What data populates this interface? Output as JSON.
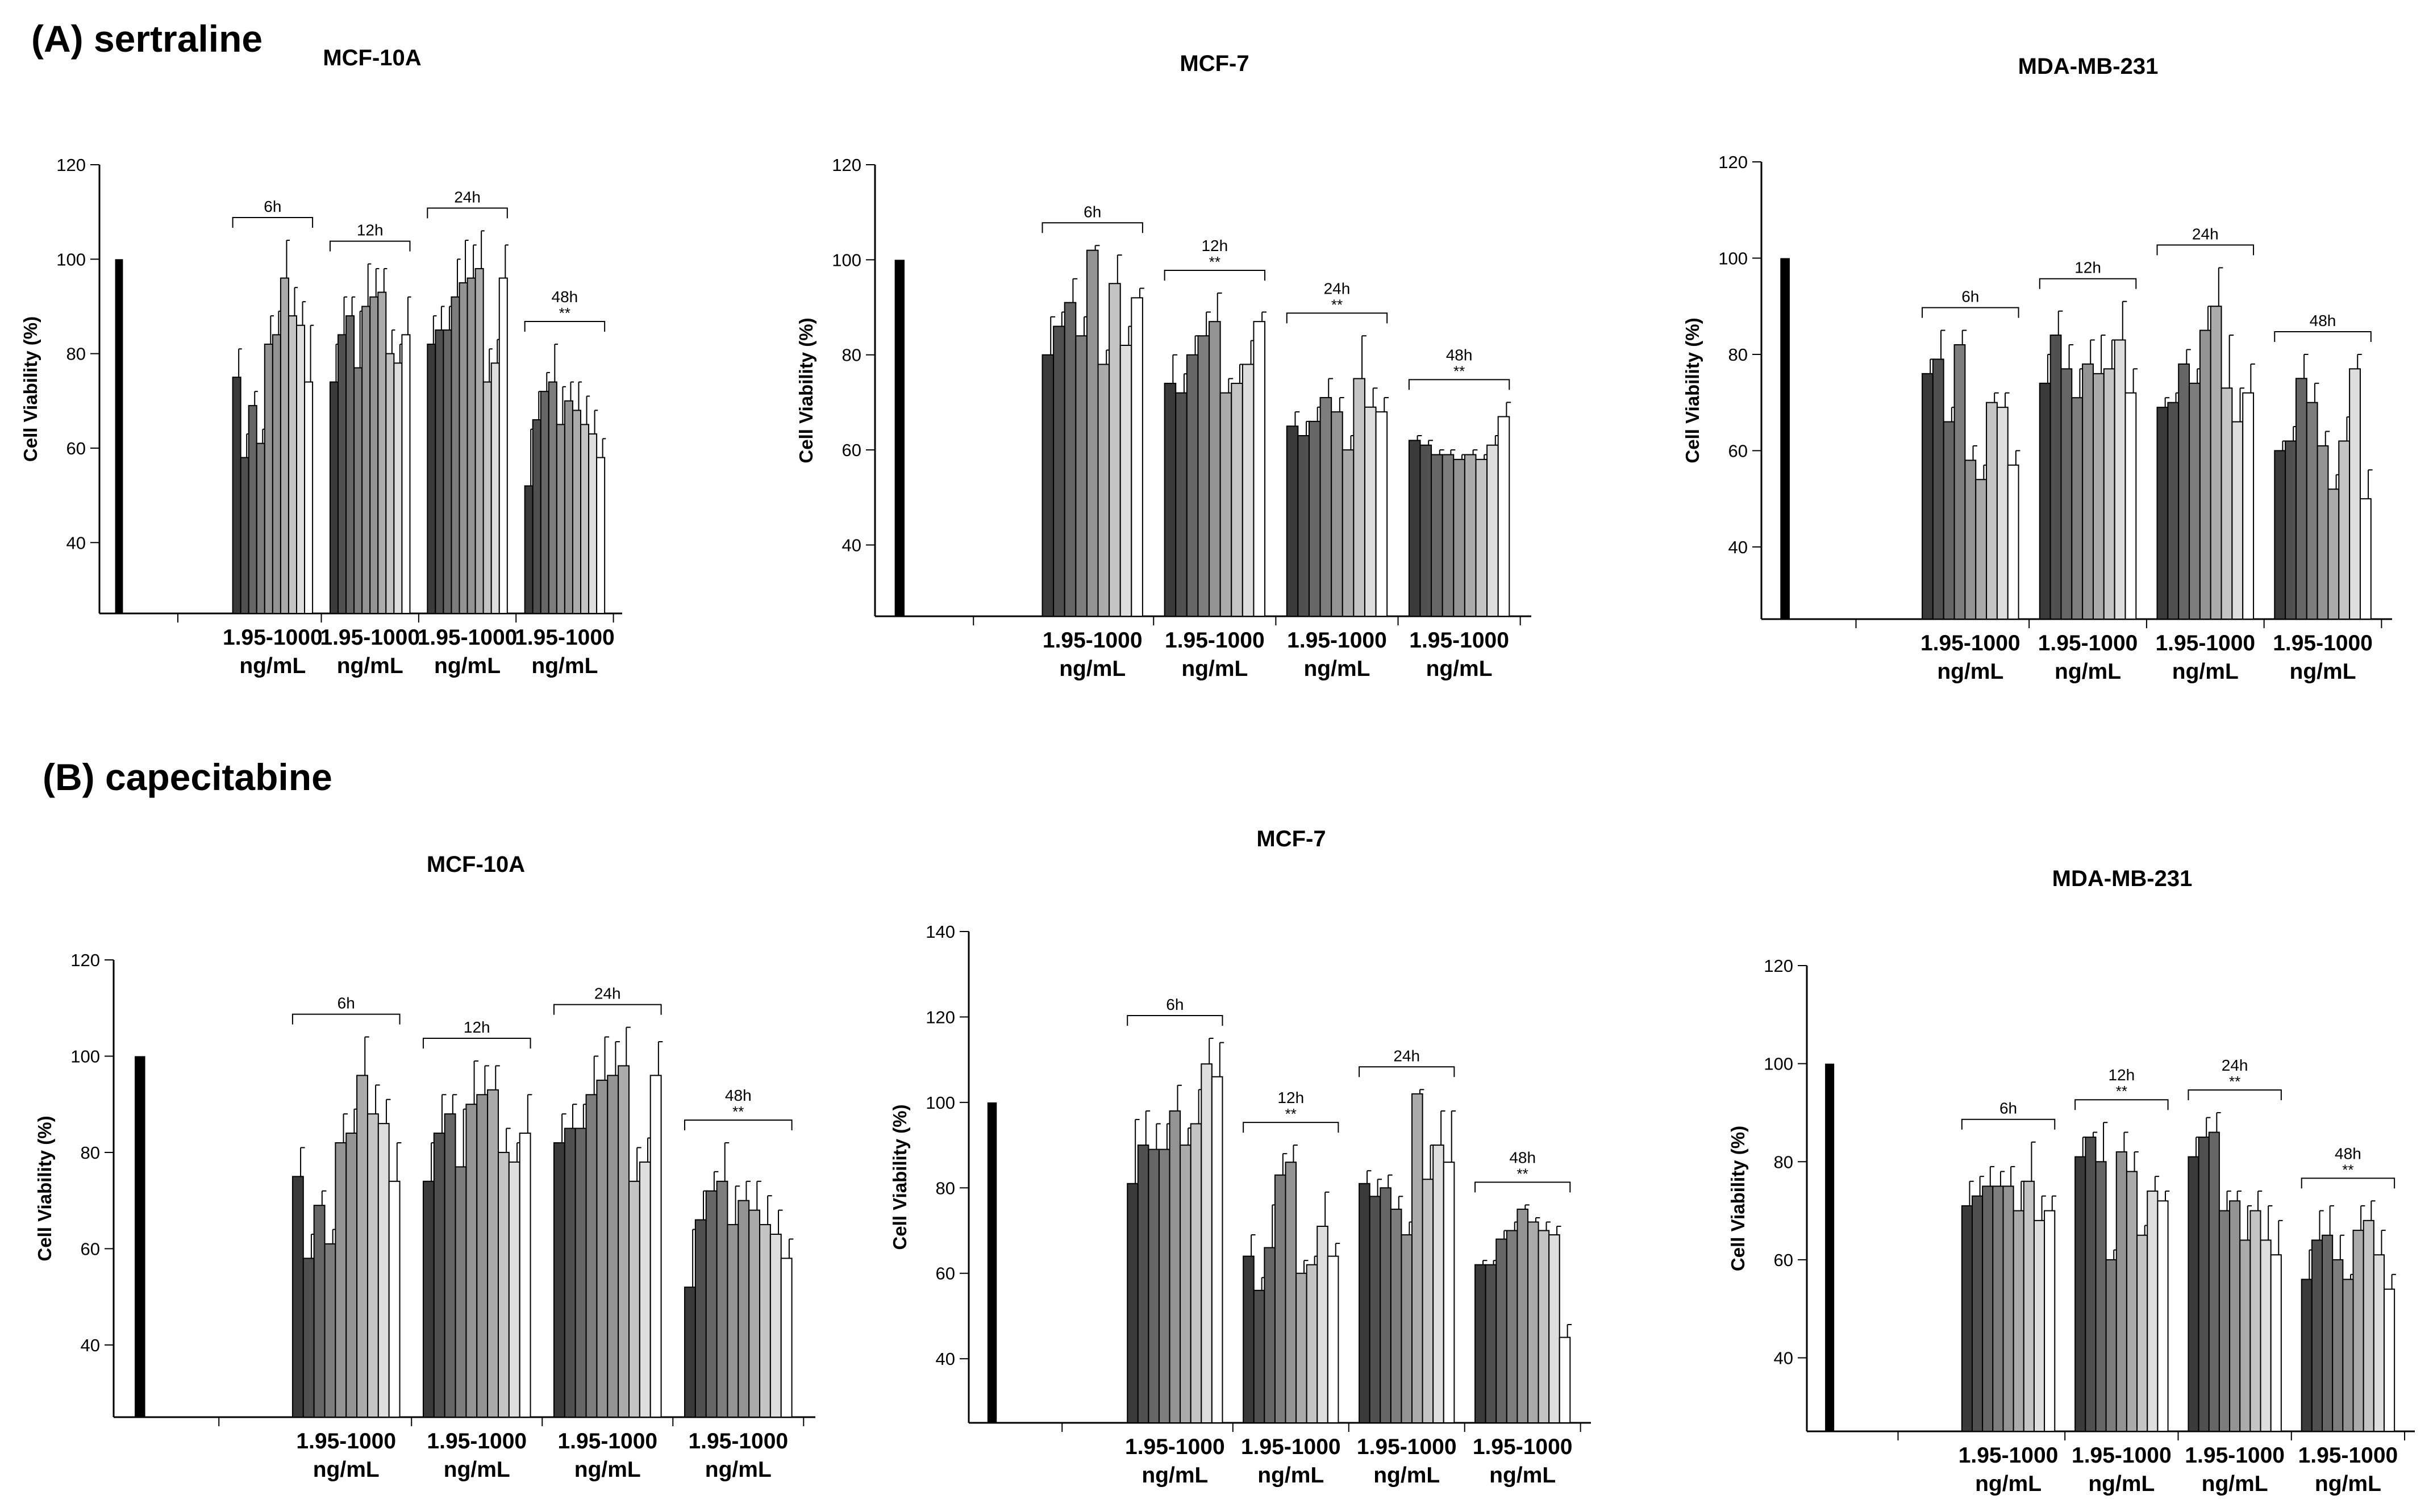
{
  "sections": {
    "a": {
      "title": "(A) sertraline"
    },
    "b": {
      "title": "(B) capecitabine"
    }
  },
  "colors": {
    "control": "#000000",
    "bar_shades": [
      "#3a3a3a",
      "#505050",
      "#666666",
      "#7d7d7d",
      "#939393",
      "#ababab",
      "#c4c4c4",
      "#dedede",
      "#ffffff"
    ],
    "axis": "#000000"
  },
  "chart_data": [
    {
      "id": "a-mcf10a",
      "type": "bar",
      "section": "a",
      "title": "MCF-10A",
      "ylabel": "Cell Viability (%)",
      "ylim": [
        25,
        120
      ],
      "yticks": [
        40,
        60,
        80,
        100,
        120
      ],
      "control": 100,
      "group_label": [
        "1.95-1000",
        "ng/mL"
      ],
      "groups": [
        {
          "time": "6h",
          "sig": "",
          "values": [
            75,
            58,
            69,
            61,
            82,
            84,
            96,
            88,
            86,
            74
          ],
          "err": [
            6,
            5,
            3,
            3,
            6,
            5,
            8,
            6,
            5,
            12
          ]
        },
        {
          "time": "12h",
          "sig": "",
          "values": [
            74,
            84,
            88,
            77,
            90,
            92,
            93,
            80,
            78,
            84
          ],
          "err": [
            8,
            8,
            4,
            12,
            9,
            6,
            5,
            5,
            4,
            8
          ]
        },
        {
          "time": "24h",
          "sig": "",
          "values": [
            82,
            85,
            85,
            92,
            95,
            96,
            98,
            74,
            78,
            96
          ],
          "err": [
            6,
            5,
            5,
            8,
            9,
            7,
            8,
            7,
            5,
            7
          ]
        },
        {
          "time": "48h",
          "sig": "**",
          "values": [
            52,
            66,
            72,
            74,
            65,
            70,
            68,
            65,
            63,
            58
          ],
          "err": [
            12,
            6,
            4,
            8,
            8,
            4,
            6,
            6,
            5,
            4
          ]
        }
      ]
    },
    {
      "id": "a-mcf7",
      "type": "bar",
      "section": "a",
      "title": "MCF-7",
      "ylabel": "Cell Viability (%)",
      "ylim": [
        25,
        120
      ],
      "yticks": [
        40,
        60,
        80,
        100,
        120
      ],
      "control": 100,
      "group_label": [
        "1.95-1000",
        "ng/mL"
      ],
      "groups": [
        {
          "time": "6h",
          "sig": "",
          "values": [
            80,
            86,
            91,
            84,
            102,
            78,
            95,
            82,
            92
          ],
          "err": [
            8,
            3,
            5,
            4,
            1,
            3,
            6,
            4,
            2
          ]
        },
        {
          "time": "12h",
          "sig": "**",
          "values": [
            74,
            72,
            80,
            84,
            87,
            72,
            74,
            78,
            87
          ],
          "err": [
            6,
            4,
            4,
            5,
            6,
            3,
            4,
            5,
            2
          ]
        },
        {
          "time": "24h",
          "sig": "**",
          "values": [
            65,
            63,
            66,
            71,
            68,
            60,
            75,
            69,
            68
          ],
          "err": [
            3,
            3,
            3,
            4,
            3,
            3,
            9,
            4,
            3
          ]
        },
        {
          "time": "48h",
          "sig": "**",
          "values": [
            62,
            61,
            59,
            59,
            58,
            59,
            58,
            61,
            67
          ],
          "err": [
            1,
            1,
            1,
            1,
            1,
            1,
            1,
            2,
            3
          ]
        }
      ]
    },
    {
      "id": "a-mda",
      "type": "bar",
      "section": "a",
      "title": "MDA-MB-231",
      "ylabel": "Cell Viability (%)",
      "ylim": [
        25,
        120
      ],
      "yticks": [
        40,
        60,
        80,
        100,
        120
      ],
      "control": 100,
      "group_label": [
        "1.95-1000",
        "ng/mL"
      ],
      "groups": [
        {
          "time": "6h",
          "sig": "",
          "values": [
            76,
            79,
            66,
            82,
            58,
            54,
            70,
            69,
            57
          ],
          "err": [
            3,
            6,
            3,
            3,
            3,
            3,
            2,
            3,
            3
          ]
        },
        {
          "time": "12h",
          "sig": "",
          "values": [
            74,
            84,
            77,
            71,
            78,
            76,
            77,
            83,
            72
          ],
          "err": [
            6,
            5,
            5,
            6,
            5,
            8,
            6,
            8,
            5
          ]
        },
        {
          "time": "24h",
          "sig": "",
          "values": [
            69,
            70,
            78,
            74,
            85,
            90,
            73,
            66,
            72
          ],
          "err": [
            2,
            2,
            3,
            3,
            5,
            8,
            11,
            7,
            6
          ]
        },
        {
          "time": "48h",
          "sig": "",
          "values": [
            60,
            62,
            75,
            70,
            61,
            52,
            62,
            77,
            50
          ],
          "err": [
            2,
            3,
            5,
            4,
            3,
            3,
            5,
            3,
            6
          ]
        }
      ]
    },
    {
      "id": "b-mcf10a",
      "type": "bar",
      "section": "b",
      "title": "MCF-10A",
      "ylabel": "Cell Viability (%)",
      "ylim": [
        25,
        120
      ],
      "yticks": [
        40,
        60,
        80,
        100,
        120
      ],
      "control": 100,
      "group_label": [
        "1.95-1000",
        "ng/mL"
      ],
      "groups": [
        {
          "time": "6h",
          "sig": "",
          "values": [
            75,
            58,
            69,
            61,
            82,
            84,
            96,
            88,
            86,
            74
          ],
          "err": [
            6,
            5,
            3,
            3,
            6,
            5,
            8,
            6,
            5,
            8
          ]
        },
        {
          "time": "12h",
          "sig": "",
          "values": [
            74,
            84,
            88,
            77,
            90,
            92,
            93,
            80,
            78,
            84
          ],
          "err": [
            8,
            8,
            4,
            12,
            9,
            6,
            5,
            5,
            4,
            8
          ]
        },
        {
          "time": "24h",
          "sig": "",
          "values": [
            82,
            85,
            85,
            92,
            95,
            96,
            98,
            74,
            78,
            96
          ],
          "err": [
            6,
            5,
            5,
            8,
            9,
            7,
            8,
            7,
            5,
            7
          ]
        },
        {
          "time": "48h",
          "sig": "**",
          "values": [
            52,
            66,
            72,
            74,
            65,
            70,
            68,
            65,
            63,
            58
          ],
          "err": [
            12,
            6,
            4,
            8,
            8,
            4,
            6,
            6,
            5,
            4
          ]
        }
      ]
    },
    {
      "id": "b-mcf7",
      "type": "bar",
      "section": "b",
      "title": "MCF-7",
      "ylabel": "Cell Viability (%)",
      "ylim": [
        25,
        140
      ],
      "yticks": [
        40,
        60,
        80,
        100,
        120,
        140
      ],
      "control": 100,
      "group_label": [
        "1.95-1000",
        "ng/mL"
      ],
      "groups": [
        {
          "time": "6h",
          "sig": "",
          "values": [
            81,
            90,
            89,
            89,
            98,
            90,
            95,
            109,
            106
          ],
          "err": [
            15,
            8,
            6,
            6,
            6,
            4,
            8,
            6,
            8
          ]
        },
        {
          "time": "12h",
          "sig": "**",
          "values": [
            64,
            56,
            66,
            83,
            86,
            60,
            62,
            71,
            64
          ],
          "err": [
            5,
            3,
            10,
            5,
            4,
            3,
            2,
            8,
            3
          ]
        },
        {
          "time": "24h",
          "sig": "",
          "values": [
            81,
            78,
            80,
            75,
            69,
            102,
            82,
            90,
            86
          ],
          "err": [
            3,
            4,
            3,
            3,
            3,
            1,
            8,
            8,
            12
          ]
        },
        {
          "time": "48h",
          "sig": "**",
          "values": [
            62,
            62,
            68,
            70,
            75,
            72,
            70,
            69,
            45
          ],
          "err": [
            1,
            1,
            2,
            2,
            1,
            1,
            2,
            2,
            3
          ]
        }
      ]
    },
    {
      "id": "b-mda",
      "type": "bar",
      "section": "b",
      "title": "MDA-MB-231",
      "ylabel": "Cell Viability (%)",
      "ylim": [
        25,
        120
      ],
      "yticks": [
        40,
        60,
        80,
        100,
        120
      ],
      "control": 100,
      "group_label": [
        "1.95-1000",
        "ng/mL"
      ],
      "groups": [
        {
          "time": "6h",
          "sig": "",
          "values": [
            71,
            73,
            75,
            75,
            75,
            70,
            76,
            68,
            70
          ],
          "err": [
            5,
            4,
            4,
            3,
            4,
            6,
            8,
            5,
            3
          ]
        },
        {
          "time": "12h",
          "sig": "**",
          "values": [
            81,
            85,
            80,
            60,
            82,
            78,
            65,
            74,
            72
          ],
          "err": [
            4,
            1,
            8,
            2,
            4,
            4,
            2,
            3,
            2
          ]
        },
        {
          "time": "24h",
          "sig": "**",
          "values": [
            81,
            85,
            86,
            70,
            72,
            64,
            70,
            64,
            61
          ],
          "err": [
            4,
            4,
            4,
            4,
            2,
            7,
            4,
            7,
            7
          ]
        },
        {
          "time": "48h",
          "sig": "**",
          "values": [
            56,
            64,
            65,
            60,
            56,
            66,
            68,
            61,
            54
          ],
          "err": [
            6,
            6,
            6,
            5,
            1,
            5,
            4,
            5,
            3
          ]
        }
      ]
    }
  ]
}
